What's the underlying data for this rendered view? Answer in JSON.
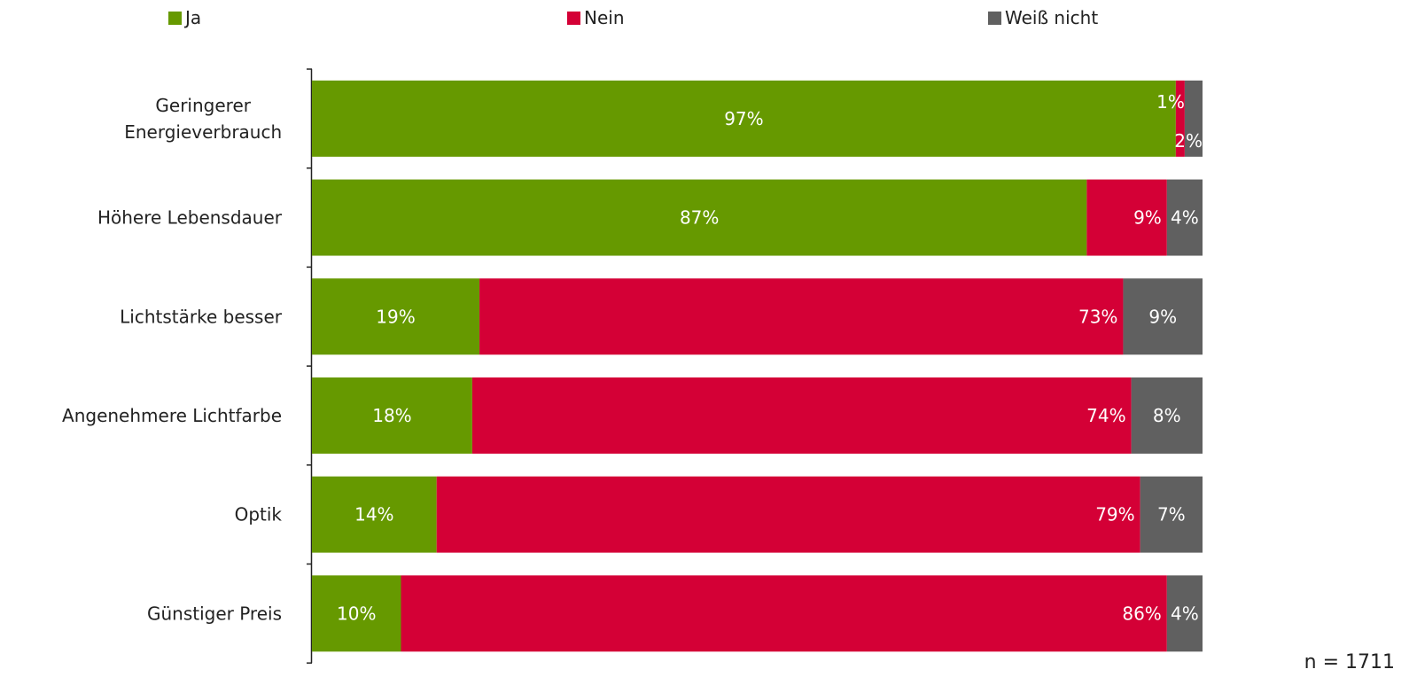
{
  "chart_data": {
    "type": "bar",
    "orientation": "horizontal",
    "stacked": true,
    "normalized": true,
    "categories": [
      "Geringerer Energieverbrauch",
      "Höhere Lebensdauer",
      "Lichtstärke besser",
      "Angenehmere Lichtfarbe",
      "Optik",
      "Günstiger Preis"
    ],
    "series": [
      {
        "name": "Ja",
        "color": "#669900",
        "values": [
          97,
          87,
          19,
          18,
          14,
          10
        ]
      },
      {
        "name": "Nein",
        "color": "#D40036",
        "values": [
          1,
          9,
          73,
          74,
          79,
          86
        ]
      },
      {
        "name": "Weiß nicht",
        "color": "#606060",
        "values": [
          2,
          4,
          9,
          8,
          7,
          4
        ]
      }
    ],
    "value_suffix": "%",
    "xlim": [
      0,
      100
    ],
    "grid": false,
    "legend_position": "top"
  },
  "footnote": "n = 1711"
}
